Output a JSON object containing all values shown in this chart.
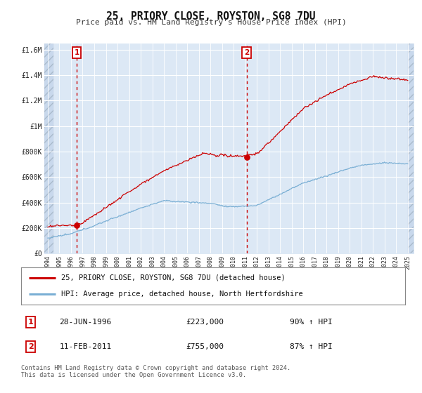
{
  "title": "25, PRIORY CLOSE, ROYSTON, SG8 7DU",
  "subtitle": "Price paid vs. HM Land Registry's House Price Index (HPI)",
  "ylabel_ticks": [
    "£0",
    "£200K",
    "£400K",
    "£600K",
    "£800K",
    "£1M",
    "£1.2M",
    "£1.4M",
    "£1.6M"
  ],
  "ytick_values": [
    0,
    200000,
    400000,
    600000,
    800000,
    1000000,
    1200000,
    1400000,
    1600000
  ],
  "ylim": [
    0,
    1650000
  ],
  "xlim_start": 1993.7,
  "xlim_end": 2025.5,
  "sale1_year": 1996.49,
  "sale1_price": 223000,
  "sale2_year": 2011.12,
  "sale2_price": 755000,
  "sale1_label": "1",
  "sale2_label": "2",
  "legend_line1": "25, PRIORY CLOSE, ROYSTON, SG8 7DU (detached house)",
  "legend_line2": "HPI: Average price, detached house, North Hertfordshire",
  "table_row1_num": "1",
  "table_row1_date": "28-JUN-1996",
  "table_row1_price": "£223,000",
  "table_row1_hpi": "90% ↑ HPI",
  "table_row2_num": "2",
  "table_row2_date": "11-FEB-2011",
  "table_row2_price": "£755,000",
  "table_row2_hpi": "87% ↑ HPI",
  "footnote": "Contains HM Land Registry data © Crown copyright and database right 2024.\nThis data is licensed under the Open Government Licence v3.0.",
  "price_color": "#cc0000",
  "hpi_color": "#7aafd4",
  "bg_blue": "#dce8f5",
  "bg_hatch_left": "#c8d8ec",
  "grid_color": "#ffffff",
  "background_color": "#ffffff",
  "hatch_right_color": "#dce8f5"
}
